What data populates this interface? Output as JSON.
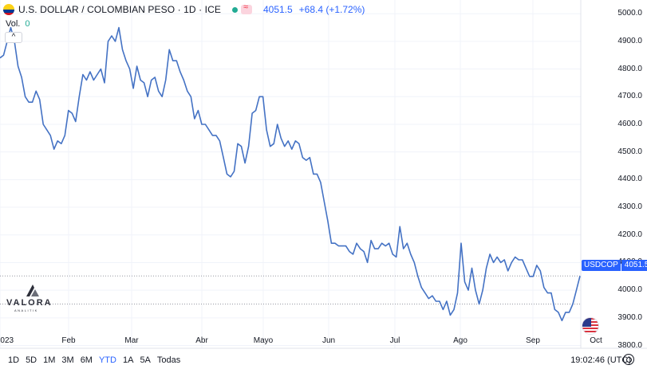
{
  "header": {
    "symbol_title": "U.S. DOLLAR / COLOMBIAN PESO · 1D · ICE",
    "last_price": "4051.5",
    "change": "+68.4 (+1.72%)"
  },
  "volume": {
    "label": "Vol.",
    "value": "0"
  },
  "collapse_icon": "^",
  "price_tag": {
    "symbol": "USDCOP",
    "value": "4051.5"
  },
  "logo": {
    "name": "VALORA",
    "sub": "ANALITIK"
  },
  "range_buttons": [
    {
      "label": "1D",
      "active": false
    },
    {
      "label": "5D",
      "active": false
    },
    {
      "label": "1M",
      "active": false
    },
    {
      "label": "3M",
      "active": false
    },
    {
      "label": "6M",
      "active": false
    },
    {
      "label": "YTD",
      "active": true
    },
    {
      "label": "1A",
      "active": false
    },
    {
      "label": "5A",
      "active": false
    },
    {
      "label": "Todas",
      "active": false
    }
  ],
  "clock": "19:02:46 (UTC)",
  "colors": {
    "line": "#4472c4",
    "accent": "#2962ff",
    "grid": "#f0f3fa"
  },
  "chart_data": {
    "type": "line",
    "title": "U.S. DOLLAR / COLOMBIAN PESO · 1D · ICE",
    "y_ticks": [
      "5000.0",
      "4900.0",
      "4800.0",
      "4700.0",
      "4600.0",
      "4500.0",
      "4400.0",
      "4300.0",
      "4200.0",
      "4100.0",
      "4000.0",
      "3900.0",
      "3800.0"
    ],
    "x_ticks": [
      "2023",
      "Feb",
      "Mar",
      "Abr",
      "Mayo",
      "Jun",
      "Jul",
      "Ago",
      "Sep",
      "Oct"
    ],
    "ylim": [
      3790,
      5015
    ],
    "grid": true,
    "series": [
      {
        "values": [
          4840,
          4850,
          4900,
          4950,
          4900,
          4810,
          4770,
          4700,
          4680,
          4680,
          4720,
          4690,
          4600,
          4580,
          4560,
          4510,
          4540,
          4530,
          4560,
          4650,
          4640,
          4610,
          4700,
          4780,
          4760,
          4790,
          4760,
          4780,
          4800,
          4750,
          4900,
          4920,
          4900,
          4950,
          4870,
          4830,
          4800,
          4730,
          4810,
          4760,
          4750,
          4700,
          4760,
          4770,
          4720,
          4700,
          4760,
          4870,
          4830,
          4830,
          4790,
          4760,
          4720,
          4700,
          4620,
          4650,
          4600,
          4600,
          4580,
          4560,
          4560,
          4540,
          4480,
          4420,
          4410,
          4430,
          4530,
          4520,
          4460,
          4520,
          4640,
          4650,
          4700,
          4700,
          4580,
          4520,
          4530,
          4600,
          4550,
          4520,
          4540,
          4510,
          4540,
          4530,
          4480,
          4470,
          4480,
          4420,
          4420,
          4390,
          4320,
          4250,
          4170,
          4170,
          4160,
          4160,
          4160,
          4140,
          4130,
          4170,
          4150,
          4140,
          4100,
          4180,
          4150,
          4150,
          4170,
          4160,
          4170,
          4130,
          4120,
          4230,
          4150,
          4170,
          4130,
          4100,
          4050,
          4010,
          3990,
          3970,
          3980,
          3960,
          3960,
          3930,
          3960,
          3910,
          3930,
          3990,
          4170,
          4030,
          4000,
          4080,
          4000,
          3950,
          4000,
          4080,
          4130,
          4100,
          4120,
          4100,
          4110,
          4070,
          4100,
          4120,
          4110,
          4110,
          4080,
          4050,
          4050,
          4090,
          4070,
          4010,
          3990,
          3990,
          3930,
          3920,
          3890,
          3920,
          3920,
          3950,
          4000,
          4051.5
        ],
        "last": 4051.5
      }
    ],
    "reference_levels": [
      4051.5,
      3950
    ]
  }
}
